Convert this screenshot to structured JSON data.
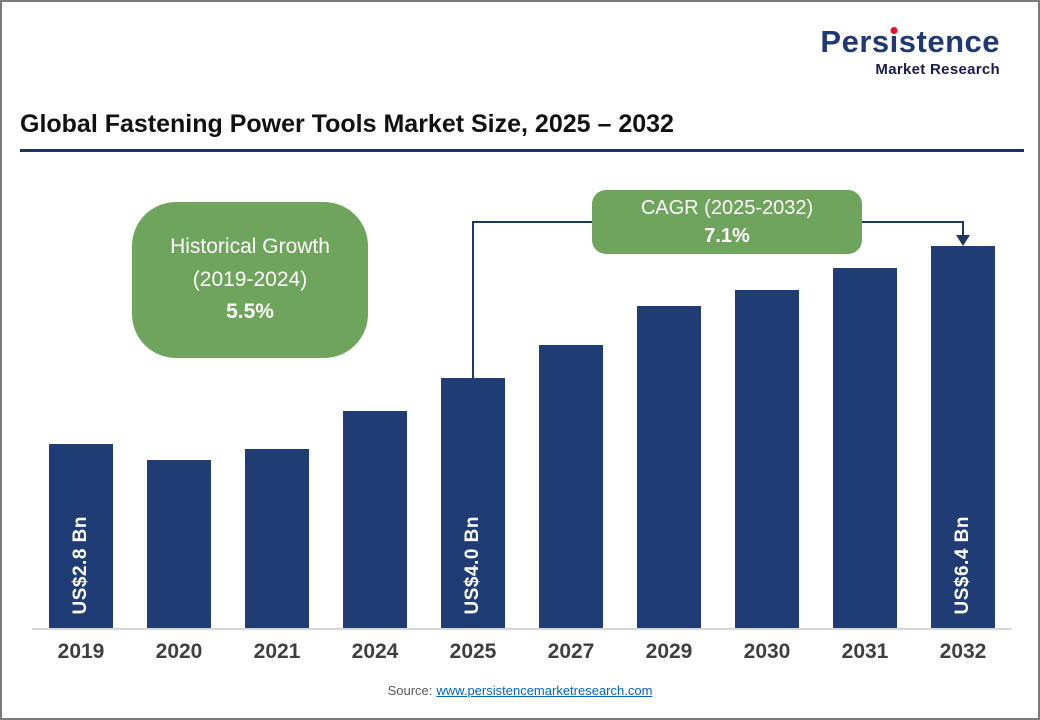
{
  "header": {
    "logo": {
      "brand_pre": "Pers",
      "brand_i": "i",
      "brand_post": "stence",
      "tagline": "Market Research",
      "brand_color": "#1F3876",
      "dot_color": "#E8112D"
    }
  },
  "title": "Global Fastening Power Tools Market Size, 2025 – 2032",
  "callouts": {
    "historical": {
      "line1": "Historical Growth",
      "line2": "(2019-2024)",
      "value": "5.5%"
    },
    "cagr": {
      "line1": "CAGR (2025-2032)",
      "value": "7.1%"
    }
  },
  "source": {
    "prefix": "Source:",
    "link": "www.persistencemarketresearch.com"
  },
  "chart_data": {
    "type": "bar",
    "title": "Global Fastening Power Tools Market Size, 2025 – 2032",
    "unit": "US$ Bn",
    "categories": [
      "2019",
      "2020",
      "2021",
      "2024",
      "2025",
      "2027",
      "2029",
      "2030",
      "2031",
      "2032"
    ],
    "values": [
      2.8,
      2.5,
      2.7,
      3.4,
      4.0,
      4.6,
      5.3,
      5.6,
      6.0,
      6.4
    ],
    "bar_labels": {
      "2019": "US$2.8 Bn",
      "2025": "US$4.0 Bn",
      "2032": "US$6.4 Bn"
    },
    "historical_growth_pct_2019_2024": 5.5,
    "cagr_pct_2025_2032": 7.1,
    "ylim": [
      0,
      7
    ],
    "grid": false,
    "legend": false,
    "colors": {
      "bar": "#1F3D74",
      "callout_green": "#6FA45C",
      "connector": "#1F3864",
      "baseline": "#D6D6D6"
    }
  }
}
